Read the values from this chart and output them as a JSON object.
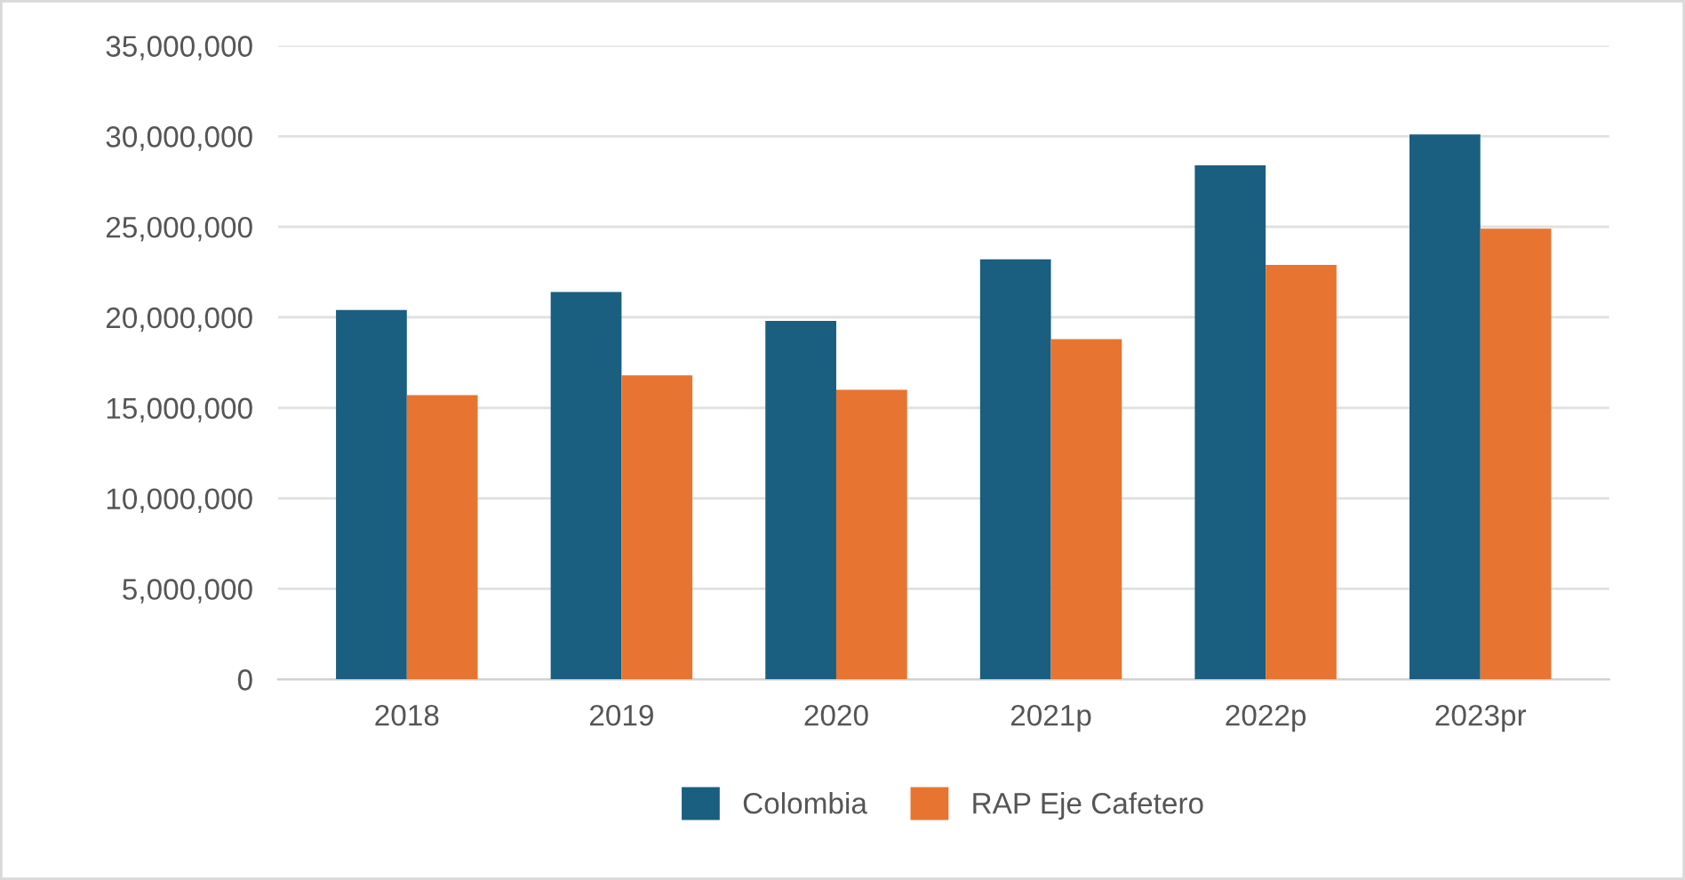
{
  "chart_data": {
    "type": "bar",
    "categories": [
      "2018",
      "2019",
      "2020",
      "2021p",
      "2022p",
      "2023pr"
    ],
    "series": [
      {
        "name": "Colombia",
        "color": "#1a5e80",
        "values": [
          20400000,
          21400000,
          19800000,
          23200000,
          28400000,
          30100000
        ]
      },
      {
        "name": "RAP Eje Cafetero",
        "color": "#e87431",
        "values": [
          15700000,
          16800000,
          16000000,
          18800000,
          22900000,
          24900000
        ]
      }
    ],
    "ylim": [
      0,
      35000000
    ],
    "yticks": [
      {
        "value": 0,
        "label": "0"
      },
      {
        "value": 5000000,
        "label": "5,000,000"
      },
      {
        "value": 10000000,
        "label": "10,000,000"
      },
      {
        "value": 15000000,
        "label": "15,000,000"
      },
      {
        "value": 20000000,
        "label": "20,000,000"
      },
      {
        "value": 25000000,
        "label": "25,000,000"
      },
      {
        "value": 30000000,
        "label": "30,000,000"
      },
      {
        "value": 35000000,
        "label": "35,000,000"
      }
    ],
    "grid": "y",
    "legend": "bottom"
  }
}
